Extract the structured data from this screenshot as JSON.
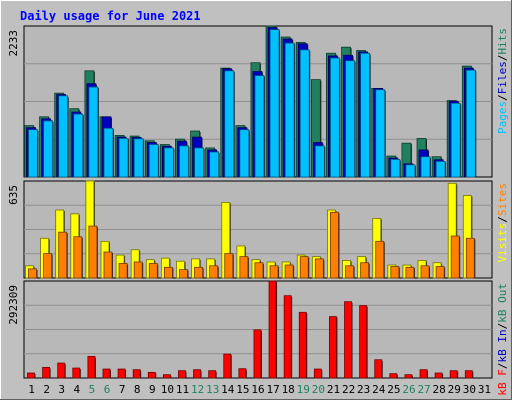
{
  "chart_data": {
    "type": "bar",
    "title": "Daily usage for June 2021",
    "categories": [
      "1",
      "2",
      "3",
      "4",
      "5",
      "6",
      "7",
      "8",
      "9",
      "10",
      "11",
      "12",
      "13",
      "14",
      "15",
      "16",
      "17",
      "18",
      "19",
      "20",
      "21",
      "22",
      "23",
      "24",
      "25",
      "26",
      "27",
      "28",
      "29",
      "30",
      "31"
    ],
    "weekend_days": [
      "5",
      "6",
      "12",
      "13",
      "19",
      "20",
      "26",
      "27"
    ],
    "panels": [
      {
        "id": "top",
        "max_label": "2233",
        "ymax": 2233,
        "series": [
          {
            "name": "Hits",
            "color": "#208060",
            "values": [
              760,
              890,
              1240,
              1010,
              1570,
              890,
              615,
              605,
              535,
              480,
              560,
              680,
              430,
              1610,
              760,
              1690,
              2233,
              2070,
              1990,
              1440,
              1830,
              1920,
              1870,
              1310,
              310,
              500,
              570,
              300,
              1130,
              1640,
              0
            ]
          },
          {
            "name": "Files",
            "color": "#0000c0",
            "values": [
              730,
              860,
              1220,
              960,
              1380,
              890,
              590,
              585,
              510,
              455,
              530,
              590,
              400,
              1600,
              730,
              1560,
              2210,
              2040,
              1970,
              510,
              1790,
              1800,
              1850,
              1310,
              280,
              195,
              400,
              255,
              1120,
              1610,
              0
            ]
          },
          {
            "name": "Pages",
            "color": "#00c0ff",
            "values": [
              700,
              830,
              1200,
              930,
              1330,
              720,
              570,
              565,
              480,
              430,
              460,
              430,
              370,
              1570,
              700,
              1500,
              2180,
              1980,
              1880,
              460,
              1760,
              1720,
              1830,
              1290,
              260,
              180,
              300,
              230,
              1090,
              1580,
              0
            ]
          }
        ],
        "right_labels": [
          {
            "text": "Pages",
            "color": "#00c0ff"
          },
          {
            "text": "/",
            "color": "#000000"
          },
          {
            "text": "Files",
            "color": "#0000c0"
          },
          {
            "text": "/",
            "color": "#000000"
          },
          {
            "text": "Hits",
            "color": "#208060"
          }
        ]
      },
      {
        "id": "middle",
        "max_label": "635",
        "ymax": 635,
        "series": [
          {
            "name": "Visits",
            "color": "#ffff00",
            "values": [
              80,
              260,
              445,
              420,
              635,
              240,
              150,
              185,
              120,
              130,
              110,
              125,
              125,
              495,
              210,
              120,
              105,
              105,
              150,
              140,
              445,
              115,
              140,
              390,
              85,
              85,
              115,
              100,
              620,
              540,
              0
            ]
          },
          {
            "name": "Sites",
            "color": "#ff8000",
            "values": [
              60,
              160,
              300,
              270,
              340,
              170,
              95,
              105,
              95,
              70,
              55,
              70,
              80,
              160,
              140,
              100,
              80,
              85,
              140,
              125,
              430,
              80,
              100,
              240,
              75,
              70,
              80,
              75,
              275,
              260,
              0
            ]
          }
        ],
        "right_labels": [
          {
            "text": "Visits",
            "color": "#ffff00"
          },
          {
            "text": "/",
            "color": "#000000"
          },
          {
            "text": "Sites",
            "color": "#ff8000"
          }
        ]
      },
      {
        "id": "bottom",
        "max_label": "292309",
        "ymax": 292309,
        "series": [
          {
            "name": "kB F",
            "color": "#ff0000",
            "values": [
              15000,
              32000,
              45000,
              30000,
              65000,
              27000,
              27000,
              25000,
              17000,
              10000,
              22000,
              25000,
              22000,
              72000,
              28000,
              145000,
              292309,
              248000,
              198000,
              27000,
              185000,
              230000,
              218000,
              55000,
              13000,
              10000,
              25000,
              15000,
              22000,
              22000,
              0
            ]
          }
        ],
        "right_labels": [
          {
            "text": "kB F",
            "color": "#ff0000"
          },
          {
            "text": "/",
            "color": "#000000"
          },
          {
            "text": "kB In",
            "color": "#0000c0"
          },
          {
            "text": "/",
            "color": "#000000"
          },
          {
            "text": "kB Out",
            "color": "#208060"
          }
        ]
      }
    ]
  },
  "colors": {
    "background": "#c0c0c0",
    "plot_area": "#b8b8b8",
    "title": "#0000ff",
    "weekend_label": "#208060",
    "weekday_label": "#000000"
  }
}
